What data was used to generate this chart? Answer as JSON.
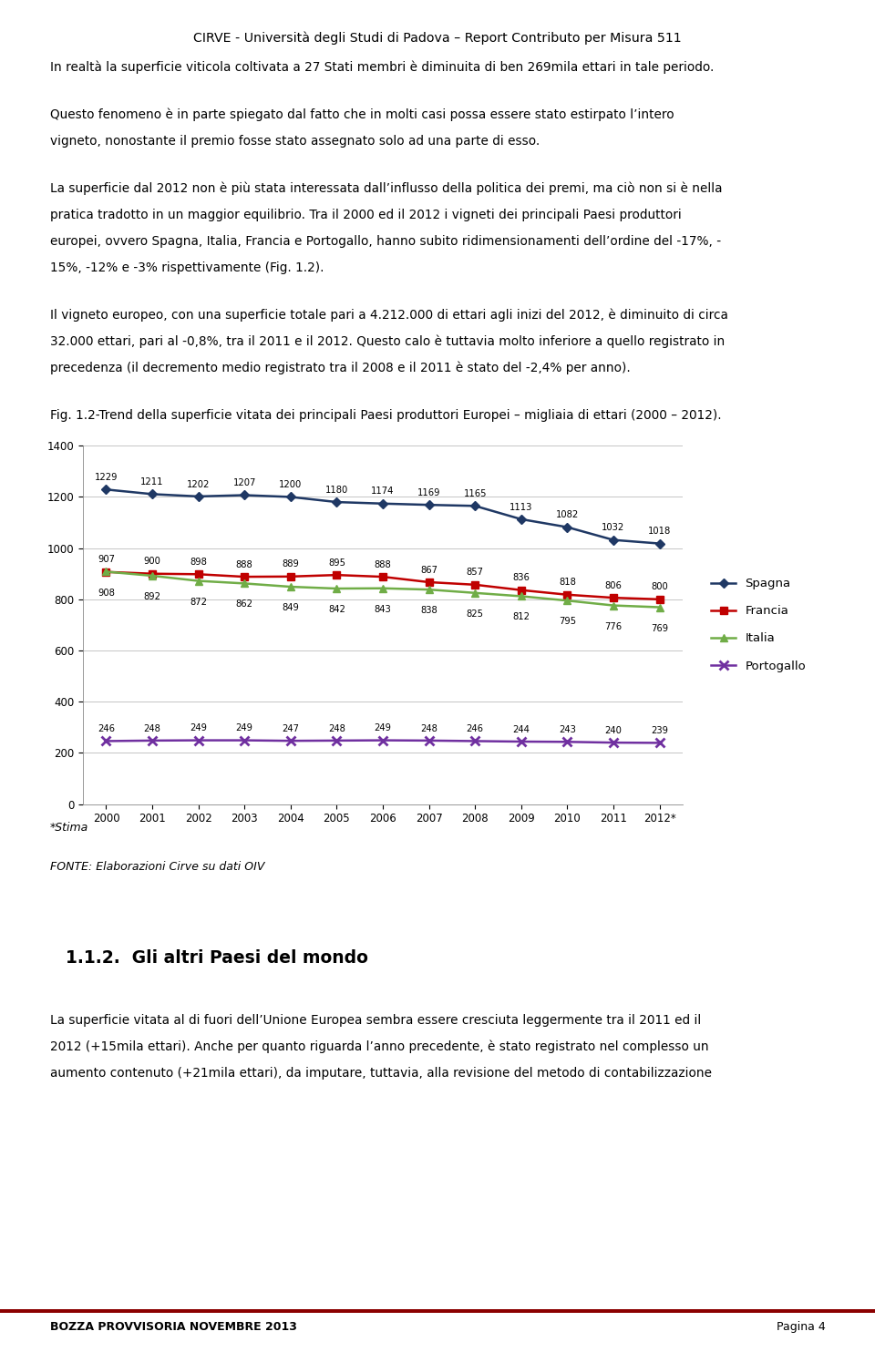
{
  "header": "CIRVE - Università degli Studi di Padova – Report Contributo per Misura 511",
  "para1": "In realtà la superficie viticola coltivata a 27 Stati membri è diminuita di ben 269mila ettari in tale periodo.",
  "para2a": "Questo fenomeno è in parte spiegato dal fatto che in molti casi possa essere stato estirpato l’intero",
  "para2b": "vigneto, nonostante il premio fosse stato assegnato solo ad una parte di esso.",
  "para3a": "La superficie dal 2012 non è più stata interessata dall’influsso della politica dei premi, ma ciò non si è nella",
  "para3b": "pratica tradotto in un maggior equilibrio. Tra il 2000 ed il 2012 i vigneti dei principali Paesi produttori",
  "para3c": "europei, ovvero Spagna, Italia, Francia e Portogallo, hanno subito ridimensionamenti dell’ordine del -17%, -",
  "para3d": "15%, -12% e -3% rispettivamente (Fig. 1.2).",
  "para4a": "Il vigneto europeo, con una superficie totale pari a 4.212.000 di ettari agli inizi del 2012, è diminuito di circa",
  "para4b": "32.000 ettari, pari al -0,8%, tra il 2011 e il 2012. Questo calo è tuttavia molto inferiore a quello registrato in",
  "para4c": "precedenza (il decremento medio registrato tra il 2008 e il 2011 è stato del -2,4% per anno).",
  "fig_caption": "Fig. 1.2-Trend della superficie vitata dei principali Paesi produttori Europei – migliaia di ettari (2000 – 2012).",
  "years": [
    "2000",
    "2001",
    "2002",
    "2003",
    "2004",
    "2005",
    "2006",
    "2007",
    "2008",
    "2009",
    "2010",
    "2011",
    "2012*"
  ],
  "spagna": [
    1229,
    1211,
    1202,
    1207,
    1200,
    1180,
    1174,
    1169,
    1165,
    1113,
    1082,
    1032,
    1018
  ],
  "francia": [
    907,
    900,
    898,
    888,
    889,
    895,
    888,
    867,
    857,
    836,
    818,
    806,
    800
  ],
  "italia": [
    908,
    892,
    872,
    862,
    849,
    842,
    843,
    838,
    825,
    812,
    795,
    776,
    769
  ],
  "portogallo": [
    246,
    248,
    249,
    249,
    247,
    248,
    249,
    248,
    246,
    244,
    243,
    240,
    239
  ],
  "spagna_color": "#1F3864",
  "francia_color": "#C00000",
  "italia_color": "#70AD47",
  "portogallo_color": "#7030A0",
  "ylim": [
    0,
    1400
  ],
  "yticks": [
    0,
    200,
    400,
    600,
    800,
    1000,
    1200,
    1400
  ],
  "stima_note": "*Stima",
  "fonte_note": "FONTE: Elaborazioni Cirve su dati OIV",
  "section_title": "1.1.2.  Gli altri Paesi del mondo",
  "bp1a": "La superficie vitata al di fuori dell’Unione Europea sembra essere cresciuta leggermente tra il 2011 ed il",
  "bp1b": "2012 (+15mila ettari). Anche per quanto riguarda l’anno precedente, è stato registrato nel complesso un",
  "bp1c": "aumento contenuto (+21mila ettari), da imputare, tuttavia, alla revisione del metodo di contabilizzazione",
  "footer_left": "BOZZA PROVVISORIA NOVEMBRE 2013",
  "footer_right": "Pagina 4",
  "background_color": "#ffffff"
}
